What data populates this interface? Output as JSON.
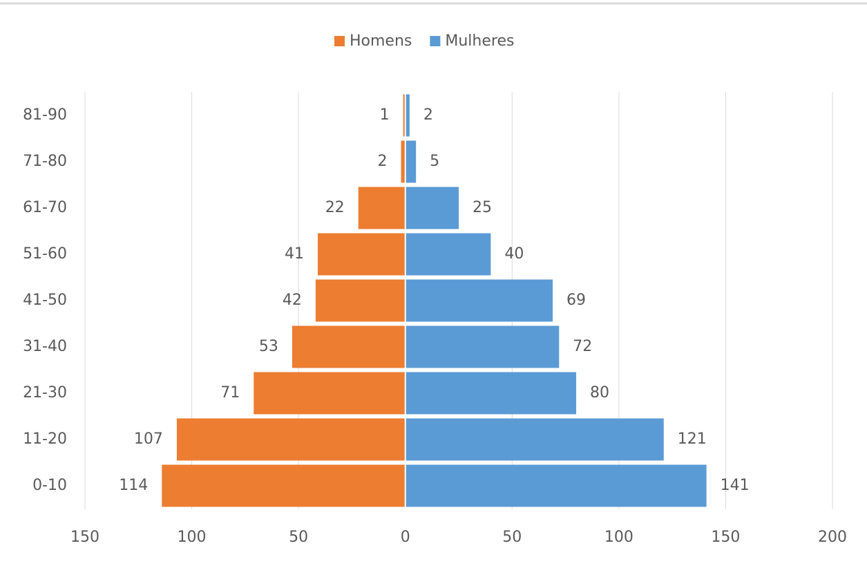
{
  "chart_data": {
    "type": "bar",
    "orientation": "horizontal",
    "legend": "top",
    "grid": true,
    "categories": [
      "0-10",
      "11-20",
      "21-30",
      "31-40",
      "41-50",
      "51-60",
      "61-70",
      "71-80",
      "81-90"
    ],
    "series": [
      {
        "name": "Homens",
        "color": "#ed7d31",
        "values": [
          -114,
          -107,
          -71,
          -53,
          -42,
          -41,
          -22,
          -2,
          -1
        ],
        "value_labels": [
          "114",
          "107",
          "71",
          "53",
          "42",
          "41",
          "22",
          "2",
          "1"
        ]
      },
      {
        "name": "Mulheres",
        "color": "#5b9bd5",
        "values": [
          141,
          121,
          80,
          72,
          69,
          40,
          25,
          5,
          2
        ]
      }
    ],
    "xlim": [
      -150,
      200
    ],
    "xticks": [
      {
        "value": -150,
        "label": "150"
      },
      {
        "value": -100,
        "label": "100"
      },
      {
        "value": -50,
        "label": "50"
      },
      0,
      50,
      100,
      150,
      200
    ]
  }
}
